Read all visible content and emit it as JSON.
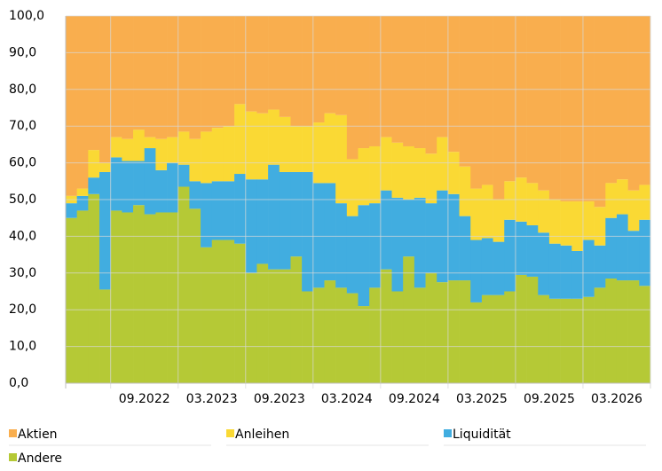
{
  "chart_data": {
    "type": "stacked_bar",
    "categories": [
      null,
      null,
      null,
      null,
      null,
      null,
      "09.2022",
      null,
      null,
      null,
      null,
      null,
      "03.2023",
      null,
      null,
      null,
      null,
      null,
      "09.2023",
      null,
      null,
      null,
      null,
      null,
      "03.2024",
      null,
      null,
      null,
      null,
      null,
      "09.2024",
      null,
      null,
      null,
      null,
      null,
      "03.2025",
      null,
      null,
      null,
      null,
      null,
      "09.2025",
      null,
      null,
      null,
      null,
      null,
      "03.2026",
      null,
      null,
      null
    ],
    "series": [
      {
        "name": "Aktien",
        "color": "#f9ae4e",
        "values": [
          49,
          47,
          36.5,
          40,
          33,
          33.5,
          31,
          33,
          33.5,
          33,
          31.5,
          33.5,
          31.5,
          30.5,
          30,
          24,
          26,
          26.5,
          25.5,
          27.5,
          30,
          30,
          29,
          26.5,
          27,
          39,
          36,
          35.5,
          33,
          34.5,
          35.5,
          36,
          37.5,
          33,
          37,
          41,
          47,
          46,
          50,
          45,
          44,
          45.5,
          47.5,
          50,
          50.5,
          50.5,
          50.5,
          52,
          45.5,
          44.5,
          47.5,
          46
        ]
      },
      {
        "name": "Anleihen",
        "color": "#fad934",
        "values": [
          2,
          2,
          7.5,
          2.5,
          5.5,
          6,
          8.5,
          3,
          8.5,
          7,
          9,
          11.5,
          14,
          14.5,
          15,
          19,
          18.5,
          18,
          15,
          15,
          12.5,
          12.5,
          16.5,
          19,
          24,
          15.5,
          15.5,
          15.5,
          14.5,
          15,
          14.5,
          13.5,
          13.5,
          14.5,
          11.5,
          13.5,
          14,
          14.5,
          11.5,
          10.5,
          12,
          11.5,
          11.5,
          12,
          12,
          13.5,
          10.5,
          10.5,
          9.5,
          9.5,
          11,
          9.5
        ]
      },
      {
        "name": "Liquidität",
        "color": "#41ade0",
        "values": [
          4,
          4,
          4.5,
          32,
          14.5,
          14,
          12,
          18,
          11.5,
          13.5,
          6,
          7.5,
          17.5,
          16,
          16,
          19,
          25.5,
          23,
          28.5,
          26.5,
          23,
          32.5,
          28.5,
          26.5,
          23,
          21,
          27.5,
          23,
          21.5,
          25.5,
          15.5,
          24.5,
          19,
          25,
          23.5,
          17.5,
          17,
          15.5,
          14.5,
          19.5,
          14.5,
          14,
          17,
          15,
          14.5,
          13,
          15.5,
          11.5,
          16.5,
          18,
          13.5,
          18
        ]
      },
      {
        "name": "Andere",
        "color": "#b5c936",
        "values": [
          45,
          47,
          51.5,
          25.5,
          47,
          46.5,
          48.5,
          46,
          46.5,
          46.5,
          53.5,
          47.5,
          37,
          39,
          39,
          38,
          30,
          32.5,
          31,
          31,
          34.5,
          25,
          26,
          28,
          26,
          24.5,
          21,
          26,
          31,
          25,
          34.5,
          26,
          30,
          27.5,
          28,
          28,
          22,
          24,
          24,
          25,
          29.5,
          29,
          24,
          23,
          23,
          23,
          23.5,
          26,
          28.5,
          28,
          28,
          26.5
        ]
      }
    ],
    "ylim": [
      0,
      100
    ],
    "yticks": [
      {
        "value": 0,
        "label": "0,0"
      },
      {
        "value": 10,
        "label": "10,0"
      },
      {
        "value": 20,
        "label": "20,0"
      },
      {
        "value": 30,
        "label": "30,0"
      },
      {
        "value": 40,
        "label": "40,0"
      },
      {
        "value": 50,
        "label": "50,0"
      },
      {
        "value": 60,
        "label": "60,0"
      },
      {
        "value": 70,
        "label": "70,0"
      },
      {
        "value": 80,
        "label": "80,0"
      },
      {
        "value": 90,
        "label": "90,0"
      },
      {
        "value": 100,
        "label": "100,0"
      }
    ],
    "grid": true
  }
}
